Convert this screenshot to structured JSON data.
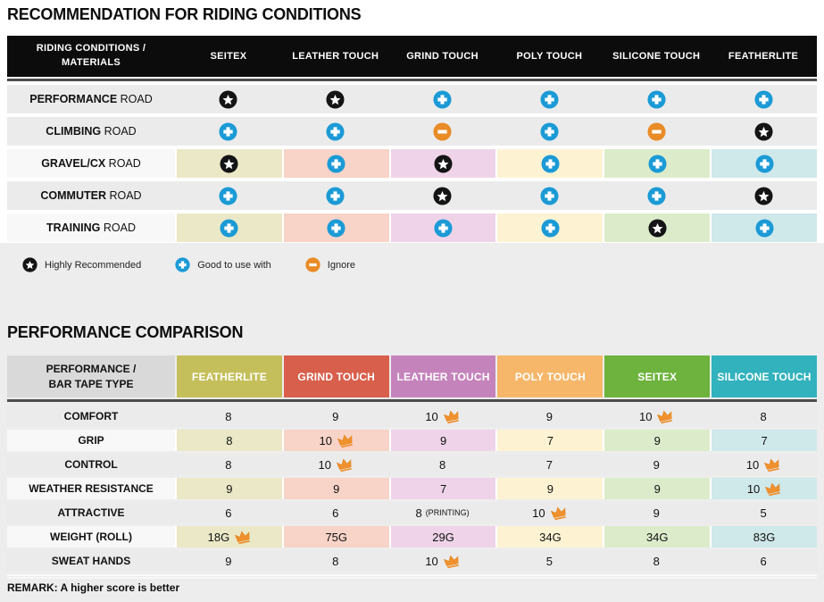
{
  "colors": {
    "plus_blue": "#1b9ad6",
    "minus_orange": "#e98b26",
    "star_black": "#141414",
    "crown_orange": "#f0912d",
    "crown_edge": "#e07f16",
    "row_gray": "#ebebeb",
    "row_light": "#f8f8f8",
    "header_black": "#0c0c0c",
    "corner_gray": "#d9d9d9",
    "panel_gray": "#ededed",
    "column_header_colors": [
      "#c5bf5b",
      "#d85f4c",
      "#c583bc",
      "#f6b76a",
      "#6db33e",
      "#31b2bd"
    ],
    "column_tints": [
      "#eae8c6",
      "#f7d3c8",
      "#efd4e9",
      "#fdf3d3",
      "#dcecca",
      "#cfe8ea"
    ]
  },
  "chart_data": [
    {
      "type": "table",
      "title": "RECOMMENDATION FOR RIDING CONDITIONS",
      "corner_label_line1": "RIDING CONDITIONS /",
      "corner_label_line2": "MATERIALS",
      "columns": [
        "SEITEX",
        "LEATHER TOUCH",
        "GRIND TOUCH",
        "POLY TOUCH",
        "SILICONE TOUCH",
        "FEATHERLITE"
      ],
      "rows": [
        {
          "condition": "PERFORMANCE",
          "suffix": "ROAD",
          "tinted": false,
          "ratings": [
            "highly_recommended",
            "highly_recommended",
            "good_to_use",
            "good_to_use",
            "good_to_use",
            "good_to_use"
          ]
        },
        {
          "condition": "CLIMBING",
          "suffix": "ROAD",
          "tinted": false,
          "ratings": [
            "good_to_use",
            "good_to_use",
            "ignore",
            "good_to_use",
            "ignore",
            "highly_recommended"
          ]
        },
        {
          "condition": "GRAVEL/CX",
          "suffix": "ROAD",
          "tinted": true,
          "ratings": [
            "highly_recommended",
            "good_to_use",
            "highly_recommended",
            "good_to_use",
            "good_to_use",
            "good_to_use"
          ]
        },
        {
          "condition": "COMMUTER",
          "suffix": "ROAD",
          "tinted": false,
          "ratings": [
            "good_to_use",
            "good_to_use",
            "highly_recommended",
            "good_to_use",
            "good_to_use",
            "highly_recommended"
          ]
        },
        {
          "condition": "TRAINING",
          "suffix": "ROAD",
          "tinted": true,
          "ratings": [
            "good_to_use",
            "good_to_use",
            "good_to_use",
            "good_to_use",
            "highly_recommended",
            "good_to_use"
          ]
        }
      ],
      "legend": [
        {
          "icon": "star",
          "label": "Highly Recommended"
        },
        {
          "icon": "plus",
          "label": "Good to use with"
        },
        {
          "icon": "minus",
          "label": "Ignore"
        }
      ]
    },
    {
      "type": "table",
      "title": "PERFORMANCE COMPARISON",
      "corner_label_line1": "PERFORMANCE /",
      "corner_label_line2": "BAR TAPE TYPE",
      "columns": [
        "FEATHERLITE",
        "GRIND TOUCH",
        "LEATHER TOUCH",
        "POLY TOUCH",
        "SEITEX",
        "SILICONE TOUCH"
      ],
      "rows": [
        {
          "metric": "COMFORT",
          "tinted": false,
          "cells": [
            {
              "v": "8"
            },
            {
              "v": "9"
            },
            {
              "v": "10",
              "best": true
            },
            {
              "v": "9"
            },
            {
              "v": "10",
              "best": true
            },
            {
              "v": "8"
            }
          ]
        },
        {
          "metric": "GRIP",
          "tinted": true,
          "cells": [
            {
              "v": "8"
            },
            {
              "v": "10",
              "best": true
            },
            {
              "v": "9"
            },
            {
              "v": "7"
            },
            {
              "v": "9"
            },
            {
              "v": "7"
            }
          ]
        },
        {
          "metric": "CONTROL",
          "tinted": false,
          "cells": [
            {
              "v": "8"
            },
            {
              "v": "10",
              "best": true
            },
            {
              "v": "8"
            },
            {
              "v": "7"
            },
            {
              "v": "9"
            },
            {
              "v": "10",
              "best": true
            }
          ]
        },
        {
          "metric": "WEATHER RESISTANCE",
          "tinted": true,
          "cells": [
            {
              "v": "9"
            },
            {
              "v": "9"
            },
            {
              "v": "7"
            },
            {
              "v": "9"
            },
            {
              "v": "9"
            },
            {
              "v": "10",
              "best": true
            }
          ]
        },
        {
          "metric": "ATTRACTIVE",
          "tinted": false,
          "cells": [
            {
              "v": "6"
            },
            {
              "v": "6"
            },
            {
              "v": "8",
              "note": "(PRINTING)"
            },
            {
              "v": "10",
              "best": true
            },
            {
              "v": "9"
            },
            {
              "v": "5"
            }
          ]
        },
        {
          "metric": "WEIGHT (ROLL)",
          "tinted": true,
          "cells": [
            {
              "v": "18G",
              "best": true
            },
            {
              "v": "75G"
            },
            {
              "v": "29G"
            },
            {
              "v": "34G"
            },
            {
              "v": "34G"
            },
            {
              "v": "83G"
            }
          ]
        },
        {
          "metric": "SWEAT HANDS",
          "tinted": false,
          "cells": [
            {
              "v": "9"
            },
            {
              "v": "8"
            },
            {
              "v": "10",
              "best": true
            },
            {
              "v": "5"
            },
            {
              "v": "8"
            },
            {
              "v": "6"
            }
          ]
        }
      ],
      "remark": "REMARK: A higher score is better"
    }
  ]
}
